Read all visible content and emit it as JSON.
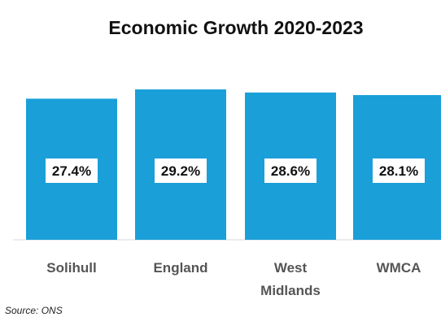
{
  "chart_data": {
    "type": "bar",
    "title": "Economic Growth 2020-2023",
    "categories": [
      "Solihull",
      "England",
      "West Midlands",
      "WMCA"
    ],
    "category_lines": [
      [
        "Solihull"
      ],
      [
        "England"
      ],
      [
        "West",
        "Midlands"
      ],
      [
        "WMCA"
      ]
    ],
    "values": [
      27.4,
      29.2,
      28.6,
      28.1
    ],
    "value_labels": [
      "27.4%",
      "29.2%",
      "28.6%",
      "28.1%"
    ],
    "ylim": [
      0,
      29.2
    ],
    "grid": false,
    "legend": "none",
    "bar_color": "#1a9fd9",
    "source": "Source: ONS"
  }
}
